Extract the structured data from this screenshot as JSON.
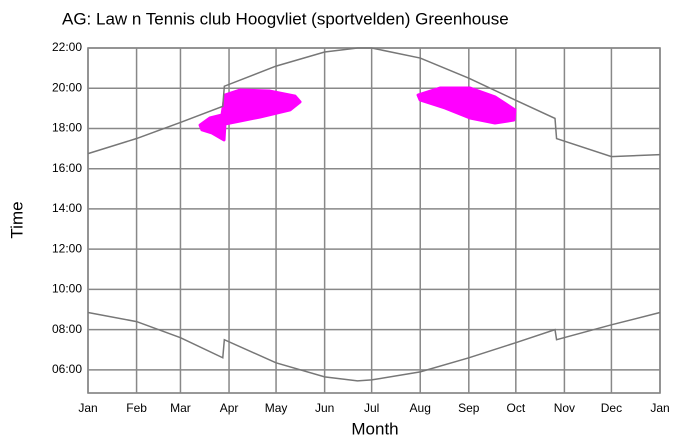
{
  "chart_data": {
    "type": "line",
    "title": "AG: Law n Tennis club Hoogvliet (sportvelden) Greenhouse",
    "xlabel": "Month",
    "ylabel": "Time",
    "xlim": [
      0,
      365
    ],
    "xticks": [
      {
        "value": 0,
        "label": "Jan"
      },
      {
        "value": 31,
        "label": "Feb"
      },
      {
        "value": 59,
        "label": "Mar"
      },
      {
        "value": 90,
        "label": "Apr"
      },
      {
        "value": 120,
        "label": "May"
      },
      {
        "value": 151,
        "label": "Jun"
      },
      {
        "value": 181,
        "label": "Jul"
      },
      {
        "value": 212,
        "label": "Aug"
      },
      {
        "value": 243,
        "label": "Sep"
      },
      {
        "value": 273,
        "label": "Oct"
      },
      {
        "value": 304,
        "label": "Nov"
      },
      {
        "value": 334,
        "label": "Dec"
      },
      {
        "value": 365,
        "label": "Jan"
      }
    ],
    "ylim": [
      4.85,
      22
    ],
    "yticks": [
      {
        "value": 6,
        "label": "06:00"
      },
      {
        "value": 8,
        "label": "08:00"
      },
      {
        "value": 10,
        "label": "10:00"
      },
      {
        "value": 12,
        "label": "12:00"
      },
      {
        "value": 14,
        "label": "14:00"
      },
      {
        "value": 16,
        "label": "16:00"
      },
      {
        "value": 18,
        "label": "18:00"
      },
      {
        "value": 20,
        "label": "20:00"
      },
      {
        "value": 22,
        "label": "22:00"
      }
    ],
    "grid": true,
    "series": [
      {
        "color": "#777777",
        "x": [
          0,
          31,
          59,
          86,
          87,
          120,
          151,
          172,
          181,
          212,
          243,
          273,
          298,
          299,
          334,
          365
        ],
        "values": [
          16.75,
          17.5,
          18.3,
          19.1,
          20.1,
          21.1,
          21.8,
          22.0,
          22.0,
          21.5,
          20.5,
          19.4,
          18.5,
          17.5,
          16.6,
          16.7
        ]
      },
      {
        "color": "#777777",
        "x": [
          0,
          31,
          59,
          86,
          87,
          120,
          151,
          172,
          181,
          212,
          243,
          273,
          298,
          299,
          334,
          365
        ],
        "values": [
          8.85,
          8.4,
          7.6,
          6.6,
          7.5,
          6.35,
          5.65,
          5.45,
          5.5,
          5.9,
          6.6,
          7.35,
          8.0,
          7.5,
          8.24,
          8.85
        ]
      }
    ],
    "regions": [
      {
        "color": "#ff00ff",
        "x": [
          71.5,
          77.8,
          85.5,
          87.4,
          97.0,
          116.1,
          132.1,
          135.3,
          128.9,
          109.8,
          97.0,
          87.4,
          86.8,
          79.1,
          72.7
        ],
        "y": [
          18.17,
          18.52,
          18.67,
          19.66,
          19.91,
          19.86,
          19.61,
          19.32,
          18.92,
          18.57,
          18.37,
          18.22,
          17.43,
          17.78,
          17.93
        ]
      },
      {
        "color": "#ff00ff",
        "x": [
          210.6,
          224.6,
          243.8,
          259.7,
          272.5,
          271.8,
          259.7,
          243.8,
          227.8,
          211.9
        ],
        "y": [
          19.66,
          20.01,
          20.01,
          19.57,
          18.92,
          18.42,
          18.27,
          18.52,
          19.02,
          19.42
        ]
      }
    ]
  }
}
